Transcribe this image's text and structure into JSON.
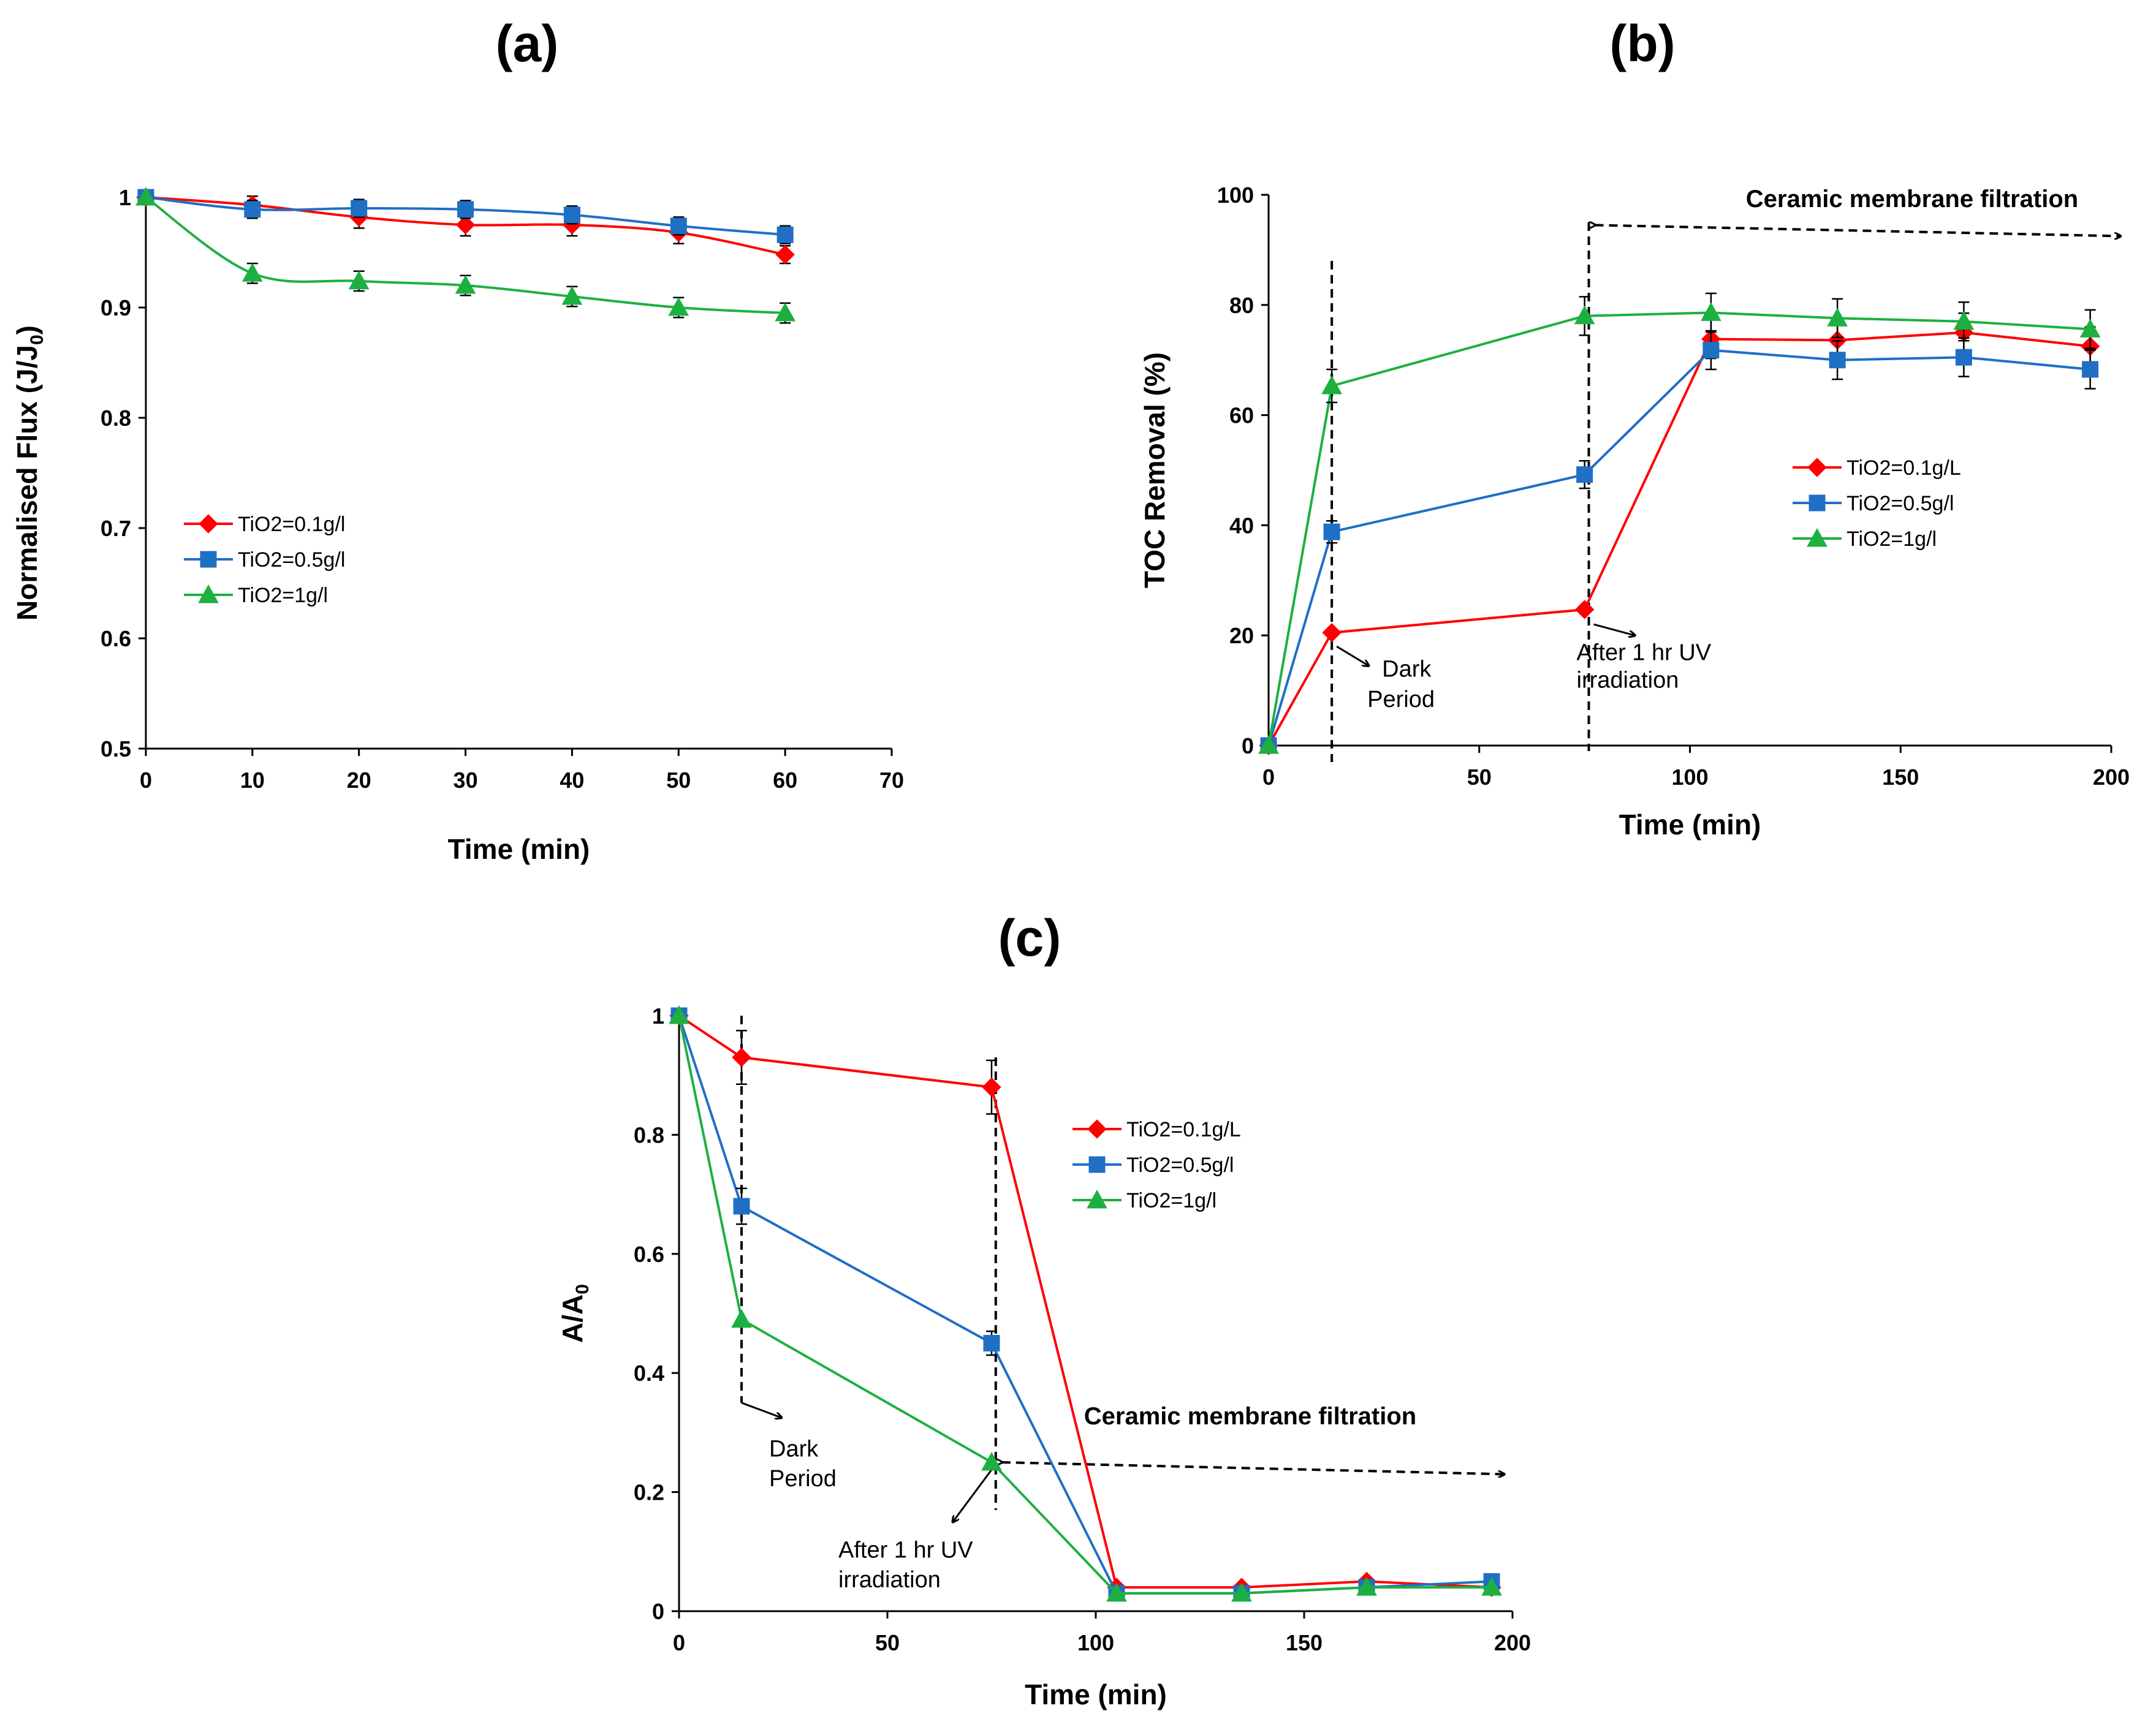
{
  "chart_data": [
    {
      "id": "a",
      "type": "line",
      "panel_label": "(a)",
      "xlabel": "Time (min)",
      "ylabel_main": "Normalised  Flux (J/J",
      "ylabel_sub": "0",
      "ylabel_end": ")",
      "xlim": [
        0,
        70
      ],
      "ylim": [
        0.5,
        1.0
      ],
      "xticks": [
        0,
        10,
        20,
        30,
        40,
        50,
        60,
        70
      ],
      "yticks": [
        0.5,
        0.6,
        0.7,
        0.8,
        0.9,
        1.0
      ],
      "ytick_labels": [
        "0.5",
        "0.6",
        "0.7",
        "0.8",
        "0.9",
        "1"
      ],
      "xtick_labels": [
        "0",
        "10",
        "20",
        "30",
        "40",
        "50",
        "60",
        "70"
      ],
      "smooth": true,
      "x": [
        0,
        10,
        20,
        30,
        40,
        50,
        60
      ],
      "series": [
        {
          "name": "TiO2=0.1g/l",
          "color": "#ff0000",
          "marker": "diamond",
          "values": [
            1.0,
            0.993,
            0.982,
            0.975,
            0.975,
            0.968,
            0.948
          ],
          "errors": [
            0,
            0.008,
            0.01,
            0.01,
            0.01,
            0.01,
            0.008
          ]
        },
        {
          "name": "TiO2=0.5g/l",
          "color": "#1f6fc5",
          "marker": "square",
          "values": [
            1.0,
            0.989,
            0.99,
            0.989,
            0.984,
            0.974,
            0.966
          ],
          "errors": [
            0,
            0.008,
            0.008,
            0.008,
            0.008,
            0.008,
            0.008
          ]
        },
        {
          "name": "TiO2=1g/l",
          "color": "#1db040",
          "marker": "triangle",
          "values": [
            1.0,
            0.931,
            0.924,
            0.92,
            0.91,
            0.9,
            0.895
          ],
          "errors": [
            0,
            0.009,
            0.009,
            0.009,
            0.009,
            0.009,
            0.009
          ]
        }
      ],
      "legend": "center-left"
    },
    {
      "id": "b",
      "type": "line",
      "panel_label": "(b)",
      "xlabel": "Time (min)",
      "ylabel": "TOC  Removal (%)",
      "xlim": [
        0,
        200
      ],
      "ylim": [
        0,
        100
      ],
      "xticks": [
        0,
        50,
        100,
        150,
        200
      ],
      "yticks": [
        0,
        20,
        40,
        60,
        80,
        100
      ],
      "xtick_labels": [
        "0",
        "50",
        "100",
        "150",
        "200"
      ],
      "ytick_labels": [
        "0",
        "20",
        "40",
        "60",
        "80",
        "100"
      ],
      "smooth": false,
      "x": [
        0,
        15,
        75,
        105,
        135,
        165,
        195
      ],
      "series": [
        {
          "name": "TiO2=0.1g/L",
          "color": "#ff0000",
          "marker": "diamond",
          "values": [
            0,
            20.5,
            24.7,
            73.8,
            73.6,
            75,
            72.5
          ],
          "errors": [
            0,
            0,
            0,
            3.5,
            3.5,
            3.5,
            3.5
          ]
        },
        {
          "name": "TiO2=0.5g/l",
          "color": "#1f6fc5",
          "marker": "square",
          "values": [
            0,
            38.8,
            49.2,
            71.8,
            70,
            70.5,
            68.3
          ],
          "errors": [
            0,
            2,
            2.5,
            3.5,
            3.5,
            3.5,
            3.5
          ]
        },
        {
          "name": "TiO2=1g/l",
          "color": "#1db040",
          "marker": "triangle",
          "values": [
            0,
            65.3,
            78,
            78.6,
            77.6,
            77,
            75.6
          ],
          "errors": [
            0,
            3,
            3.5,
            3.5,
            3.5,
            3.5,
            3.5
          ]
        }
      ],
      "legend": "center-right",
      "annotations": {
        "dark_line_x": 15,
        "uv_line_x": 76,
        "dark_label": [
          "Dark",
          "Period"
        ],
        "uv_label": [
          "After  1 hr UV",
          "irradiation"
        ],
        "region_label": "Ceramic membrane filtration"
      }
    },
    {
      "id": "c",
      "type": "line",
      "panel_label": "(c)",
      "xlabel": "Time (min)",
      "ylabel_main": "A/A",
      "ylabel_sub": "0",
      "xlim": [
        0,
        200
      ],
      "ylim": [
        0,
        1.0
      ],
      "xticks": [
        0,
        50,
        100,
        150,
        200
      ],
      "yticks": [
        0,
        0.2,
        0.4,
        0.6,
        0.8,
        1.0
      ],
      "xtick_labels": [
        "0",
        "50",
        "100",
        "150",
        "200"
      ],
      "ytick_labels": [
        "0",
        "0.2",
        "0.4",
        "0.6",
        "0.8",
        "1"
      ],
      "smooth": false,
      "x": [
        0,
        15,
        75,
        105,
        135,
        165,
        195
      ],
      "series": [
        {
          "name": "TiO2=0.1g/L",
          "color": "#ff0000",
          "marker": "diamond",
          "values": [
            1.0,
            0.93,
            0.88,
            0.04,
            0.04,
            0.05,
            0.04
          ],
          "errors": [
            0,
            0.045,
            0.045,
            0,
            0,
            0,
            0
          ]
        },
        {
          "name": "TiO2=0.5g/l",
          "color": "#1f6fc5",
          "marker": "square",
          "values": [
            1.0,
            0.68,
            0.45,
            0.03,
            0.03,
            0.04,
            0.05
          ],
          "errors": [
            0,
            0.03,
            0.02,
            0,
            0,
            0,
            0
          ]
        },
        {
          "name": "TiO2=1g/l",
          "color": "#1db040",
          "marker": "triangle",
          "values": [
            1.0,
            0.49,
            0.25,
            0.03,
            0.03,
            0.04,
            0.04
          ],
          "errors": [
            0,
            0,
            0,
            0,
            0,
            0,
            0
          ]
        }
      ],
      "legend": "top-right",
      "annotations": {
        "dark_line_x": 15,
        "uv_line_x": 76,
        "dark_label": [
          "Dark",
          "Period"
        ],
        "uv_label": [
          "After  1 hr UV",
          "irradiation"
        ],
        "region_label": "Ceramic membrane filtration"
      }
    }
  ]
}
